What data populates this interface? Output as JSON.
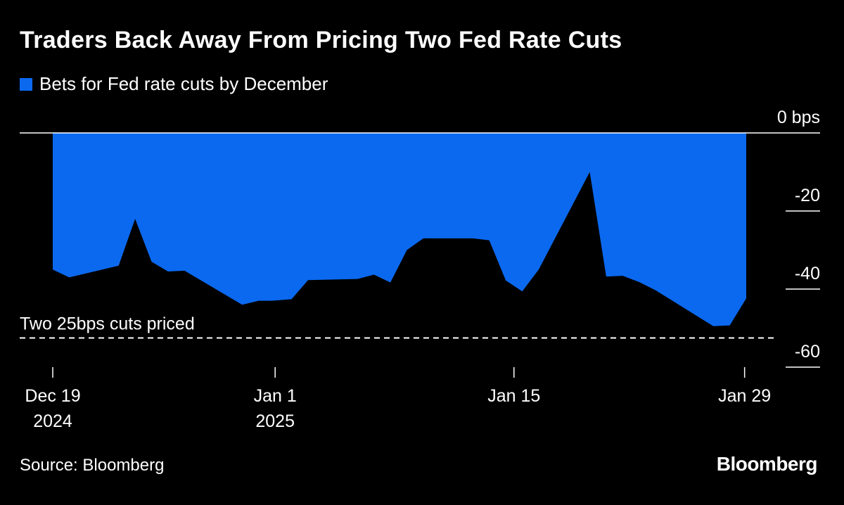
{
  "chart_data": {
    "type": "area",
    "title": "Traders Back Away From Pricing Two Fed Rate Cuts",
    "series": [
      {
        "name": "Bets for Fed rate cuts by December",
        "color": "#0b69ef",
        "points": [
          {
            "day": 0,
            "value": -35
          },
          {
            "day": 1,
            "value": -37
          },
          {
            "day": 4,
            "value": -34
          },
          {
            "day": 5,
            "value": -22
          },
          {
            "day": 6,
            "value": -33
          },
          {
            "day": 7,
            "value": -35.5
          },
          {
            "day": 8,
            "value": -35.3
          },
          {
            "day": 11.5,
            "value": -44
          },
          {
            "day": 12.5,
            "value": -43
          },
          {
            "day": 13.3,
            "value": -43
          },
          {
            "day": 14.5,
            "value": -42.6
          },
          {
            "day": 15.5,
            "value": -37.7
          },
          {
            "day": 18.5,
            "value": -37.4
          },
          {
            "day": 19.5,
            "value": -36.3
          },
          {
            "day": 20.5,
            "value": -38.3
          },
          {
            "day": 21.5,
            "value": -30
          },
          {
            "day": 22.5,
            "value": -27
          },
          {
            "day": 25.5,
            "value": -27
          },
          {
            "day": 26.5,
            "value": -27.5
          },
          {
            "day": 27.5,
            "value": -37.8
          },
          {
            "day": 28.5,
            "value": -40.6
          },
          {
            "day": 29.5,
            "value": -35
          },
          {
            "day": 32.6,
            "value": -10
          },
          {
            "day": 33.6,
            "value": -36.8
          },
          {
            "day": 34.6,
            "value": -36.6
          },
          {
            "day": 35.6,
            "value": -38.2
          },
          {
            "day": 36.6,
            "value": -40.3
          },
          {
            "day": 40.1,
            "value": -49.5
          },
          {
            "day": 41.1,
            "value": -49.3
          },
          {
            "day": 42.1,
            "value": -42.4
          }
        ]
      }
    ],
    "legend_label": "Bets for Fed rate cuts by December",
    "y_ticks": [
      {
        "value": 0,
        "label": "0 bps"
      },
      {
        "value": -20,
        "label": "-20"
      },
      {
        "value": -40,
        "label": "-40"
      },
      {
        "value": -60,
        "label": "-60"
      }
    ],
    "x_ticks": [
      {
        "day": 0,
        "line1": "Dec 19",
        "line2": "2024"
      },
      {
        "day": 13.5,
        "line1": "Jan 1",
        "line2": "2025"
      },
      {
        "day": 28,
        "line1": "Jan 15",
        "line2": ""
      },
      {
        "day": 42,
        "line1": "Jan 29",
        "line2": ""
      }
    ],
    "x_range": [
      0,
      42.1
    ],
    "y_range": [
      -60,
      0
    ],
    "reference_line": {
      "value": -50,
      "label": "Two 25bps cuts priced"
    }
  },
  "footer": {
    "source": "Source: Bloomberg",
    "brand": "Bloomberg"
  }
}
